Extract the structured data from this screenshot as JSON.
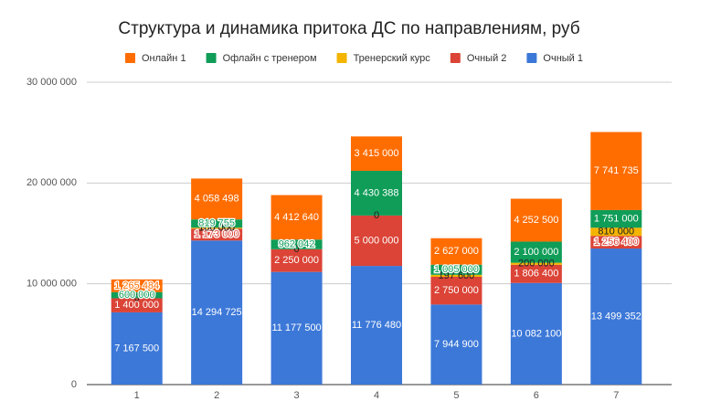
{
  "chart_data": {
    "type": "stacked_bar",
    "title": "Структура и динамика притока ДС по направлениям, руб",
    "categories": [
      "1",
      "2",
      "3",
      "4",
      "5",
      "6",
      "7"
    ],
    "series": [
      {
        "name": "Очный 1",
        "color": "#3c78d8",
        "values": [
          7167500,
          14294725,
          11177500,
          11776480,
          7944900,
          10082100,
          13499352
        ],
        "value_labels": [
          "7 167 500",
          "14 294 725",
          "11 177 500",
          "11 776 480",
          "7 944 900",
          "10 082 100",
          "13 499 352"
        ]
      },
      {
        "name": "Очный 2",
        "color": "#db4437",
        "values": [
          1400000,
          1173000,
          2250000,
          5000000,
          2750000,
          1806400,
          1256400
        ],
        "value_labels": [
          "1 400 000",
          "1 173 000",
          "2 250 000",
          "5 000 000",
          "2 750 000",
          "1 806 400",
          "1 256 400"
        ]
      },
      {
        "name": "Тренерский курс",
        "color": "#f4b400",
        "values": [
          0,
          100000,
          0,
          0,
          197600,
          200000,
          810000
        ],
        "value_labels": [
          "0",
          "100 000",
          "0",
          "0",
          "197 600",
          "200 000",
          "810 000"
        ]
      },
      {
        "name": "Офлайн с тренером",
        "color": "#0f9d58",
        "values": [
          600000,
          819755,
          962042,
          4430388,
          1005000,
          2100000,
          1751000
        ],
        "value_labels": [
          "600 000",
          "819 755",
          "962 042",
          "4 430 388",
          "1 005 000",
          "2 100 000",
          "1 751 000"
        ]
      },
      {
        "name": "Онлайн 1",
        "color": "#ff6d01",
        "values": [
          1265484,
          4058498,
          4412640,
          3415000,
          2627000,
          4252500,
          7741735
        ],
        "value_labels": [
          "1 265 484",
          "4 058 498",
          "4 412 640",
          "3 415 000",
          "2 627 000",
          "4 252 500",
          "7 741 735"
        ]
      }
    ],
    "legend_order": [
      4,
      3,
      2,
      1,
      0
    ],
    "ylim": [
      0,
      30000000
    ],
    "yticks": [
      0,
      {
        "value": 10000000,
        "label": "10 000 000"
      },
      {
        "value": 20000000,
        "label": "20 000 000"
      },
      {
        "value": 30000000,
        "label": "30 000 000"
      }
    ],
    "grid": true
  }
}
